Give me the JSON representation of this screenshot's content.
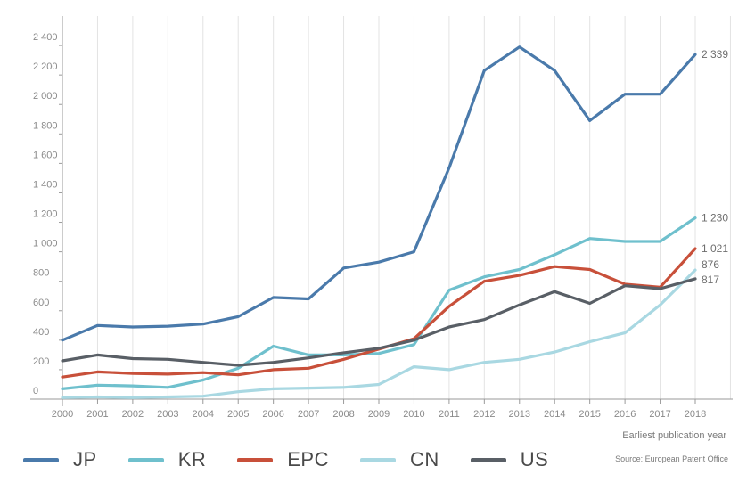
{
  "chart_data": {
    "type": "line",
    "title": "",
    "xlabel": "Earliest publication year",
    "ylabel": "",
    "x": [
      2000,
      2001,
      2002,
      2003,
      2004,
      2005,
      2006,
      2007,
      2008,
      2009,
      2010,
      2011,
      2012,
      2013,
      2014,
      2015,
      2016,
      2017,
      2018
    ],
    "ylim": [
      0,
      2600
    ],
    "yticks": [
      0,
      200,
      400,
      600,
      800,
      1000,
      1200,
      1400,
      1600,
      1800,
      2000,
      2200,
      2400
    ],
    "ytick_labels": [
      "0",
      "200",
      "400",
      "600",
      "800",
      "1 000",
      "1 200",
      "1 400",
      "1 600",
      "1 800",
      "2 000",
      "2 200",
      "2 400"
    ],
    "grid": "vertical",
    "legend": "bottom",
    "series": [
      {
        "name": "JP",
        "color": "#4a7aab",
        "end_label": "2 339",
        "values": [
          400,
          500,
          490,
          495,
          510,
          560,
          690,
          680,
          890,
          930,
          1000,
          1570,
          2230,
          2390,
          2230,
          1890,
          2070,
          2070,
          2339
        ]
      },
      {
        "name": "KR",
        "color": "#6fc0cd",
        "end_label": "1 230",
        "values": [
          70,
          95,
          90,
          80,
          130,
          210,
          360,
          300,
          300,
          310,
          370,
          740,
          830,
          880,
          980,
          1090,
          1070,
          1070,
          1230
        ]
      },
      {
        "name": "EPC",
        "color": "#c8503a",
        "end_label": "1 021",
        "values": [
          150,
          185,
          175,
          170,
          180,
          165,
          200,
          210,
          270,
          340,
          410,
          630,
          800,
          840,
          900,
          880,
          780,
          760,
          1021
        ]
      },
      {
        "name": "CN",
        "color": "#a9d8e2",
        "end_label": "876",
        "values": [
          10,
          15,
          10,
          15,
          20,
          50,
          70,
          75,
          80,
          100,
          220,
          200,
          250,
          270,
          320,
          390,
          450,
          640,
          876
        ]
      },
      {
        "name": "US",
        "color": "#595f66",
        "end_label": "817",
        "values": [
          260,
          300,
          275,
          270,
          250,
          230,
          250,
          280,
          315,
          345,
          400,
          490,
          540,
          640,
          730,
          650,
          770,
          750,
          817
        ]
      }
    ],
    "source": "Source: European Patent Office"
  }
}
